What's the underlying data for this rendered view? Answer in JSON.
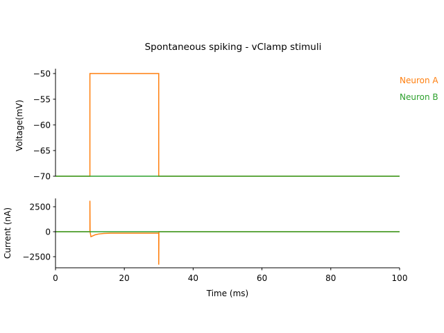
{
  "chart_data": [
    {
      "type": "line",
      "title": "Spontaneous spiking - vClamp stimuli",
      "xlabel": "",
      "ylabel": "Voltage(mV)",
      "xlim": [
        0,
        100
      ],
      "ylim": [
        -70.5,
        -49
      ],
      "yticks": [
        -50,
        -55,
        -60,
        -65,
        -70
      ],
      "ytick_labels": [
        "−50",
        "−55",
        "−60",
        "−65",
        "−70"
      ],
      "grid": false,
      "legend_placement": "right, outside plot",
      "series": [
        {
          "name": "Neuron A",
          "color": "#ff7f0e",
          "x": [
            0,
            10,
            10,
            30,
            30,
            100
          ],
          "y": [
            -70,
            -70,
            -50,
            -50,
            -70,
            -70
          ]
        },
        {
          "name": "Neuron B",
          "color": "#2ca02c",
          "x": [
            0,
            100
          ],
          "y": [
            -70,
            -70
          ]
        }
      ]
    },
    {
      "type": "line",
      "xlabel": "Time (ms)",
      "ylabel": "Current (nA)",
      "xlim": [
        0,
        100
      ],
      "ylim": [
        -3600,
        3400
      ],
      "xticks": [
        0,
        20,
        40,
        60,
        80,
        100
      ],
      "xtick_labels": [
        "0",
        "20",
        "40",
        "60",
        "80",
        "100"
      ],
      "yticks": [
        2500,
        0,
        -2500
      ],
      "ytick_labels": [
        "2500",
        "0",
        "−2500"
      ],
      "grid": false,
      "series": [
        {
          "color": "#ff7f0e",
          "x": [
            0,
            10,
            10,
            10.05,
            10.3,
            10.8,
            11.5,
            12.5,
            14,
            16,
            20,
            25,
            30,
            30,
            30.05,
            100
          ],
          "y": [
            0,
            0,
            3100,
            0,
            -500,
            -420,
            -310,
            -230,
            -175,
            -150,
            -145,
            -145,
            -145,
            -3300,
            0,
            0
          ]
        },
        {
          "color": "#2ca02c",
          "x": [
            0,
            100
          ],
          "y": [
            0,
            0
          ]
        }
      ]
    }
  ]
}
